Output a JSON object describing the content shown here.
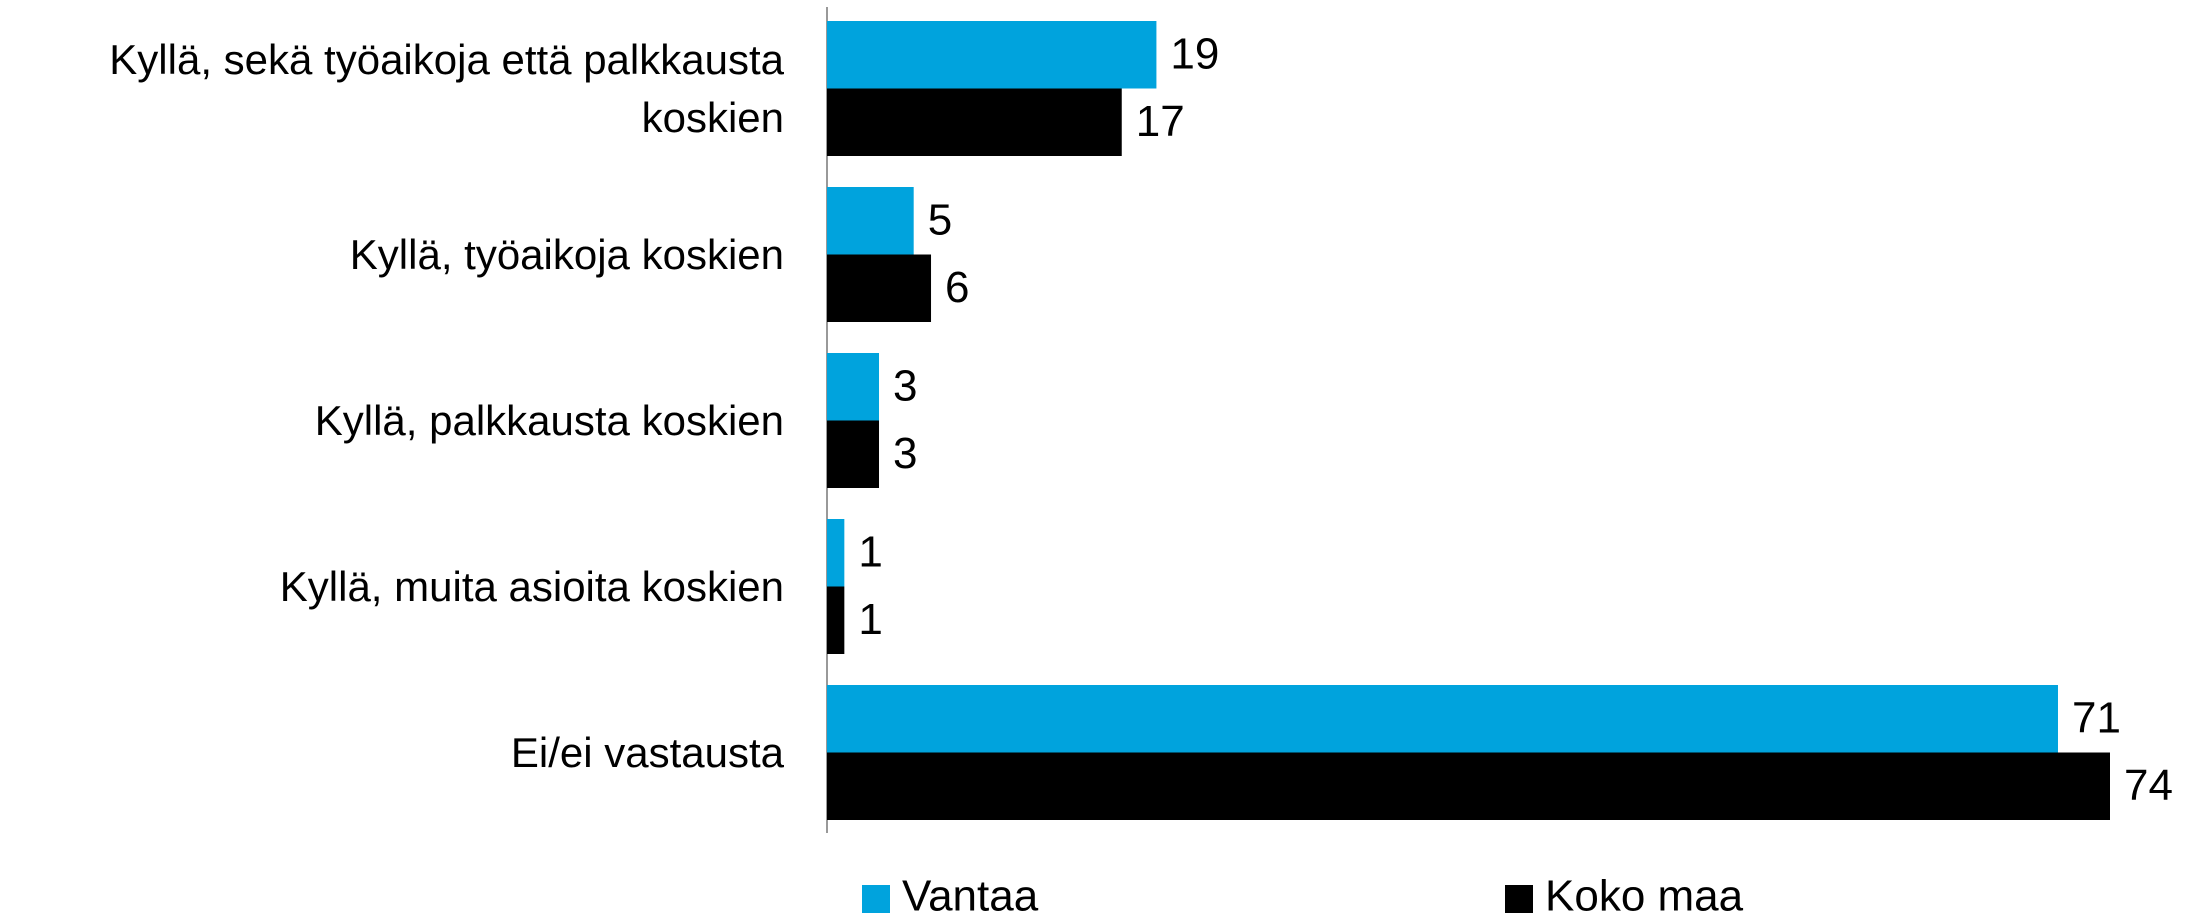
{
  "chart_data": {
    "type": "bar",
    "orientation": "horizontal",
    "categories": [
      "Kyllä, sekä työaikoja että palkkausta koskien",
      "Kyllä, työaikoja koskien",
      "Kyllä, palkkausta koskien",
      "Kyllä, muita asioita koskien",
      "Ei/ei vastausta"
    ],
    "series": [
      {
        "name": "Vantaa",
        "color": "#00a3dd",
        "values": [
          19,
          5,
          3,
          1,
          71
        ]
      },
      {
        "name": "Koko maa",
        "color": "#000000",
        "values": [
          17,
          6,
          3,
          1,
          74
        ]
      }
    ],
    "legend": "bottom"
  }
}
